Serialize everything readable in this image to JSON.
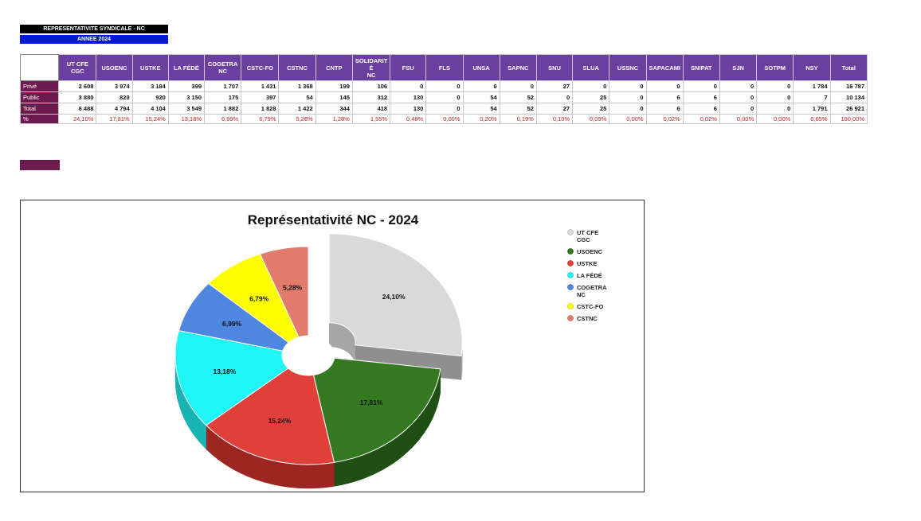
{
  "header": {
    "title": "REPRESENTATIVITE SYNDICALE - NC",
    "subtitle": "ANNEE 2024"
  },
  "table": {
    "columns": [
      "UT CFE\nCGC",
      "USOENC",
      "USTKE",
      "LA FÉDÉ",
      "COGETRA\nNC",
      "CSTC-FO",
      "CSTNC",
      "CNTP",
      "SOLIDARIT\nÉ\nNC",
      "FSU",
      "FLS",
      "UNSA",
      "SAPNC",
      "SNU",
      "SLUA",
      "USSNC",
      "SAPACAMI",
      "SNIPAT",
      "SJN",
      "SOTPM",
      "NSY",
      "Total"
    ],
    "rows": [
      {
        "label": "Privé",
        "values": [
          "2 608",
          "3 974",
          "3 184",
          "399",
          "1 707",
          "1 431",
          "1 368",
          "199",
          "106",
          "0",
          "0",
          "0",
          "0",
          "27",
          "0",
          "0",
          "0",
          "0",
          "0",
          "0",
          "1 784",
          "16 787"
        ]
      },
      {
        "label": "Public",
        "values": [
          "3 880",
          "820",
          "920",
          "3 150",
          "175",
          "397",
          "54",
          "145",
          "312",
          "130",
          "0",
          "54",
          "52",
          "0",
          "25",
          "0",
          "6",
          "6",
          "0",
          "0",
          "7",
          "10 134"
        ]
      },
      {
        "label": "Total",
        "values": [
          "6 488",
          "4 794",
          "4 104",
          "3 549",
          "1 882",
          "1 828",
          "1 422",
          "344",
          "418",
          "130",
          "0",
          "54",
          "52",
          "27",
          "25",
          "0",
          "6",
          "6",
          "0",
          "0",
          "1 791",
          "26 921"
        ]
      },
      {
        "label": "%",
        "values": [
          "24,10%",
          "17,81%",
          "15,24%",
          "13,18%",
          "6,99%",
          "6,79%",
          "5,28%",
          "1,28%",
          "1,55%",
          "0,48%",
          "0,00%",
          "0,20%",
          "0,19%",
          "0,10%",
          "0,09%",
          "0,00%",
          "0,02%",
          "0,02%",
          "0,00%",
          "0,00%",
          "6,65%",
          "100,00%"
        ]
      }
    ]
  },
  "colors": {
    "header_purple": "#6b3fa0",
    "row_label": "#6d1b4e",
    "title_bar": "#000000",
    "year_bar": "#0018d8"
  },
  "chart_data": {
    "type": "pie",
    "variant": "3d-doughnut-exploded",
    "title": "Représentativité NC - 2024",
    "legend_position": "right",
    "slices": [
      {
        "name": "UT CFE CGC",
        "value": 24.1,
        "label": "24,10%",
        "color": "#d9d9d9",
        "side": "#a6a6a6",
        "exploded": true
      },
      {
        "name": "USOENC",
        "value": 17.81,
        "label": "17,81%",
        "color": "#357a23",
        "side": "#1f4f14"
      },
      {
        "name": "USTKE",
        "value": 15.24,
        "label": "15,24%",
        "color": "#e0403a",
        "side": "#9e2622"
      },
      {
        "name": "LA FÉDÉ",
        "value": 13.18,
        "label": "13,18%",
        "color": "#1ff5f5",
        "side": "#18b3b3"
      },
      {
        "name": "COGETRA NC",
        "value": 6.99,
        "label": "6,99%",
        "color": "#4f86e0",
        "side": "#2f5aa3"
      },
      {
        "name": "CSTC-FO",
        "value": 6.79,
        "label": "6,79%",
        "color": "#ffff00",
        "side": "#b8b800"
      },
      {
        "name": "CSTNC",
        "value": 5.28,
        "label": "5,28%",
        "color": "#e07b6d",
        "side": "#a8564b"
      }
    ]
  }
}
